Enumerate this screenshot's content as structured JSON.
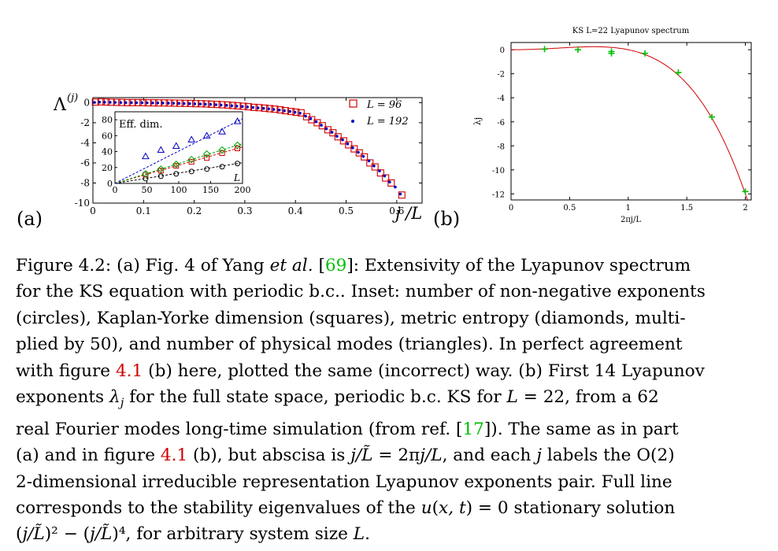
{
  "panel_a": {
    "label": "(a)",
    "y_axis_label": "Λ",
    "y_axis_sup": "(j)",
    "x_axis_label": "j /L",
    "legend": [
      {
        "name": "L = 96",
        "marker": "square",
        "color": "#d00000"
      },
      {
        "name": "L = 192",
        "marker": "dot",
        "color": "#0000c0"
      }
    ],
    "inset": {
      "title": "Eff. dim.",
      "x_label": "L",
      "x_ticks": [
        "0",
        "50",
        "100",
        "150",
        "200"
      ],
      "y_ticks": [
        "0",
        "20",
        "40",
        "60",
        "80"
      ]
    }
  },
  "panel_b": {
    "label": "(b)",
    "title": "KS L=22 Lyapunov spectrum",
    "x_label": "2πj/L",
    "y_label": "λj"
  },
  "chart_data": [
    {
      "type": "scatter",
      "panel": "a",
      "xlim": [
        0,
        0.65
      ],
      "ylim": [
        -10,
        0.5
      ],
      "x_ticks": [
        "0",
        "0.1",
        "0.2",
        "0.3",
        "0.4",
        "0.5",
        "0.6"
      ],
      "y_ticks": [
        "0",
        "-2",
        "-4",
        "-6",
        "-8",
        "-10"
      ],
      "series": [
        {
          "name": "L = 96",
          "color": "#d00000",
          "marker": "square",
          "points": [
            [
              0.005,
              0.05
            ],
            [
              0.016,
              0.08
            ],
            [
              0.026,
              0.06
            ],
            [
              0.036,
              0.04
            ],
            [
              0.047,
              0.03
            ],
            [
              0.057,
              0.02
            ],
            [
              0.068,
              0.0
            ],
            [
              0.078,
              0.0
            ],
            [
              0.089,
              0.0
            ],
            [
              0.099,
              0.0
            ],
            [
              0.109,
              -0.02
            ],
            [
              0.12,
              -0.02
            ],
            [
              0.13,
              -0.03
            ],
            [
              0.141,
              -0.03
            ],
            [
              0.151,
              -0.04
            ],
            [
              0.161,
              -0.05
            ],
            [
              0.172,
              -0.06
            ],
            [
              0.182,
              -0.07
            ],
            [
              0.193,
              -0.08
            ],
            [
              0.203,
              -0.1
            ],
            [
              0.214,
              -0.11
            ],
            [
              0.224,
              -0.13
            ],
            [
              0.234,
              -0.16
            ],
            [
              0.245,
              -0.18
            ],
            [
              0.255,
              -0.21
            ],
            [
              0.266,
              -0.24
            ],
            [
              0.276,
              -0.28
            ],
            [
              0.286,
              -0.32
            ],
            [
              0.297,
              -0.36
            ],
            [
              0.307,
              -0.41
            ],
            [
              0.318,
              -0.47
            ],
            [
              0.328,
              -0.5
            ],
            [
              0.339,
              -0.55
            ],
            [
              0.349,
              -0.6
            ],
            [
              0.359,
              -0.65
            ],
            [
              0.37,
              -0.72
            ],
            [
              0.38,
              -0.8
            ],
            [
              0.391,
              -0.88
            ],
            [
              0.401,
              -0.95
            ],
            [
              0.411,
              -1.02
            ],
            [
              0.422,
              -1.4
            ],
            [
              0.432,
              -1.7
            ],
            [
              0.443,
              -2.0
            ],
            [
              0.453,
              -2.3
            ],
            [
              0.464,
              -2.7
            ],
            [
              0.474,
              -3.0
            ],
            [
              0.484,
              -3.4
            ],
            [
              0.495,
              -3.8
            ],
            [
              0.505,
              -4.2
            ],
            [
              0.516,
              -4.6
            ],
            [
              0.526,
              -5.0
            ],
            [
              0.536,
              -5.4
            ],
            [
              0.547,
              -6.0
            ],
            [
              0.557,
              -6.4
            ],
            [
              0.568,
              -7.0
            ],
            [
              0.578,
              -7.5
            ],
            [
              0.589,
              -8.0
            ],
            [
              0.61,
              -9.2
            ]
          ]
        },
        {
          "name": "L = 192",
          "color": "#0000c0",
          "marker": "dot",
          "points": [
            [
              0.003,
              0.02
            ],
            [
              0.013,
              0.05
            ],
            [
              0.023,
              0.04
            ],
            [
              0.034,
              0.03
            ],
            [
              0.044,
              0.02
            ],
            [
              0.055,
              0.01
            ],
            [
              0.065,
              0.0
            ],
            [
              0.076,
              0.0
            ],
            [
              0.086,
              -0.01
            ],
            [
              0.097,
              -0.01
            ],
            [
              0.107,
              -0.02
            ],
            [
              0.118,
              -0.03
            ],
            [
              0.128,
              -0.03
            ],
            [
              0.138,
              -0.04
            ],
            [
              0.149,
              -0.05
            ],
            [
              0.159,
              -0.06
            ],
            [
              0.17,
              -0.07
            ],
            [
              0.18,
              -0.09
            ],
            [
              0.191,
              -0.1
            ],
            [
              0.201,
              -0.12
            ],
            [
              0.212,
              -0.14
            ],
            [
              0.222,
              -0.16
            ],
            [
              0.232,
              -0.18
            ],
            [
              0.243,
              -0.21
            ],
            [
              0.253,
              -0.24
            ],
            [
              0.264,
              -0.27
            ],
            [
              0.274,
              -0.31
            ],
            [
              0.284,
              -0.35
            ],
            [
              0.295,
              -0.39
            ],
            [
              0.305,
              -0.43
            ],
            [
              0.316,
              -0.48
            ],
            [
              0.326,
              -0.52
            ],
            [
              0.337,
              -0.57
            ],
            [
              0.347,
              -0.62
            ],
            [
              0.357,
              -0.68
            ],
            [
              0.368,
              -0.74
            ],
            [
              0.378,
              -0.81
            ],
            [
              0.389,
              -0.88
            ],
            [
              0.399,
              -0.96
            ],
            [
              0.409,
              -1.05
            ],
            [
              0.42,
              -1.35
            ],
            [
              0.43,
              -1.6
            ],
            [
              0.441,
              -1.9
            ],
            [
              0.451,
              -2.25
            ],
            [
              0.461,
              -2.6
            ],
            [
              0.472,
              -2.95
            ],
            [
              0.482,
              -3.35
            ],
            [
              0.493,
              -3.7
            ],
            [
              0.503,
              -4.1
            ],
            [
              0.513,
              -4.5
            ],
            [
              0.524,
              -4.95
            ],
            [
              0.534,
              -5.35
            ],
            [
              0.545,
              -5.8
            ],
            [
              0.555,
              -6.3
            ],
            [
              0.566,
              -6.8
            ],
            [
              0.576,
              -7.3
            ],
            [
              0.586,
              -7.9
            ],
            [
              0.597,
              -8.4
            ],
            [
              0.607,
              -9.1
            ]
          ]
        }
      ]
    },
    {
      "type": "scatter",
      "panel": "a-inset",
      "xlim": [
        0,
        200
      ],
      "ylim": [
        0,
        90
      ],
      "series": [
        {
          "name": "non-negative exponents",
          "marker": "circle",
          "color": "#000000",
          "x": [
            48,
            72,
            96,
            120,
            144,
            168,
            192
          ],
          "y": [
            6,
            9,
            12,
            15,
            18,
            21,
            25
          ]
        },
        {
          "name": "Kaplan-Yorke dimension",
          "marker": "square",
          "color": "#d00000",
          "x": [
            48,
            72,
            96,
            120,
            144,
            168,
            192
          ],
          "y": [
            11,
            16,
            22,
            27,
            32,
            38,
            44
          ]
        },
        {
          "name": "metric entropy",
          "marker": "diamond",
          "color": "#00a000",
          "x": [
            48,
            72,
            96,
            120,
            144,
            168,
            192
          ],
          "y": [
            12,
            18,
            24,
            30,
            37,
            42,
            48
          ]
        },
        {
          "name": "physical modes",
          "marker": "triangle",
          "color": "#0000c0",
          "x": [
            48,
            72,
            96,
            120,
            144,
            168,
            192
          ],
          "y": [
            34,
            42,
            47,
            55,
            60,
            65,
            78
          ]
        }
      ]
    },
    {
      "type": "scatter",
      "panel": "b",
      "xlim": [
        0,
        2.05
      ],
      "ylim": [
        -12.5,
        0.6
      ],
      "x_ticks": [
        "0",
        "0.5",
        "1",
        "1.5",
        "2"
      ],
      "y_ticks": [
        "0",
        "-2",
        "-4",
        "-6",
        "-8",
        "-10",
        "-12"
      ],
      "series": [
        {
          "name": "",
          "marker": "plus",
          "color": "#00c000",
          "points": [
            [
              0.286,
              0.05
            ],
            [
              0.571,
              0.0
            ],
            [
              0.857,
              -0.3
            ],
            [
              0.857,
              -0.15
            ],
            [
              1.143,
              -0.3
            ],
            [
              1.428,
              -1.9
            ],
            [
              1.714,
              -5.6
            ],
            [
              2.0,
              -11.8
            ]
          ]
        }
      ],
      "curve": {
        "name": "",
        "color": "#d00000",
        "formula": "x^2 - x^4"
      }
    }
  ],
  "caption": {
    "lines": [
      [
        {
          "t": "Figure 4.2:  (a) Fig. 4 of Yang "
        },
        {
          "t": "et al.",
          "c": "ital"
        },
        {
          "t": " ["
        },
        {
          "t": "69",
          "c": "ref-green"
        },
        {
          "t": "]: Extensivity of the Lyapunov spectrum"
        }
      ],
      [
        {
          "t": "for the KS equation with periodic b.c.. Inset: number of non-negative exponents"
        }
      ],
      [
        {
          "t": "(circles), Kaplan-Yorke dimension (squares), metric entropy (diamonds, multi-"
        }
      ],
      [
        {
          "t": "plied by 50), and number of physical modes (triangles). In perfect agreement"
        }
      ],
      [
        {
          "t": "with figure "
        },
        {
          "t": "4.1",
          "c": "ref-red"
        },
        {
          "t": " (b) here, plotted the same (incorrect) way. (b) First 14 Lyapunov"
        }
      ],
      [
        {
          "t": "exponents "
        },
        {
          "t": "λ",
          "c": "ital"
        },
        {
          "t": "j",
          "c": "ital sub"
        },
        {
          "t": " for the full state space, periodic b.c. KS for "
        },
        {
          "t": "L",
          "c": "ital"
        },
        {
          "t": " = 22, from a 62"
        }
      ],
      [
        {
          "t": "real Fourier modes long-time simulation (from ref. ["
        },
        {
          "t": "17",
          "c": "ref-green"
        },
        {
          "t": "]). The same as in part"
        }
      ],
      [
        {
          "t": "(a) and in figure "
        },
        {
          "t": "4.1",
          "c": "ref-red"
        },
        {
          "t": " (b), but abscisa is "
        },
        {
          "t": "j/L̃",
          "c": "ital"
        },
        {
          "t": " = 2π"
        },
        {
          "t": "j/L",
          "c": "ital"
        },
        {
          "t": ", and each "
        },
        {
          "t": "j",
          "c": "ital"
        },
        {
          "t": " labels the O(2)"
        }
      ],
      [
        {
          "t": "2-dimensional irreducible representation Lyapunov exponents pair. Full line"
        }
      ],
      [
        {
          "t": "corresponds to the stability eigenvalues of the "
        },
        {
          "t": "u",
          "c": "ital"
        },
        {
          "t": "("
        },
        {
          "t": "x, t",
          "c": "ital"
        },
        {
          "t": ") = 0 stationary solution"
        }
      ],
      [
        {
          "t": "("
        },
        {
          "t": "j/L̃",
          "c": "ital"
        },
        {
          "t": ")² − ("
        },
        {
          "t": "j/L̃",
          "c": "ital"
        },
        {
          "t": ")⁴, for arbitrary system size "
        },
        {
          "t": "L",
          "c": "ital"
        },
        {
          "t": "."
        }
      ]
    ]
  }
}
